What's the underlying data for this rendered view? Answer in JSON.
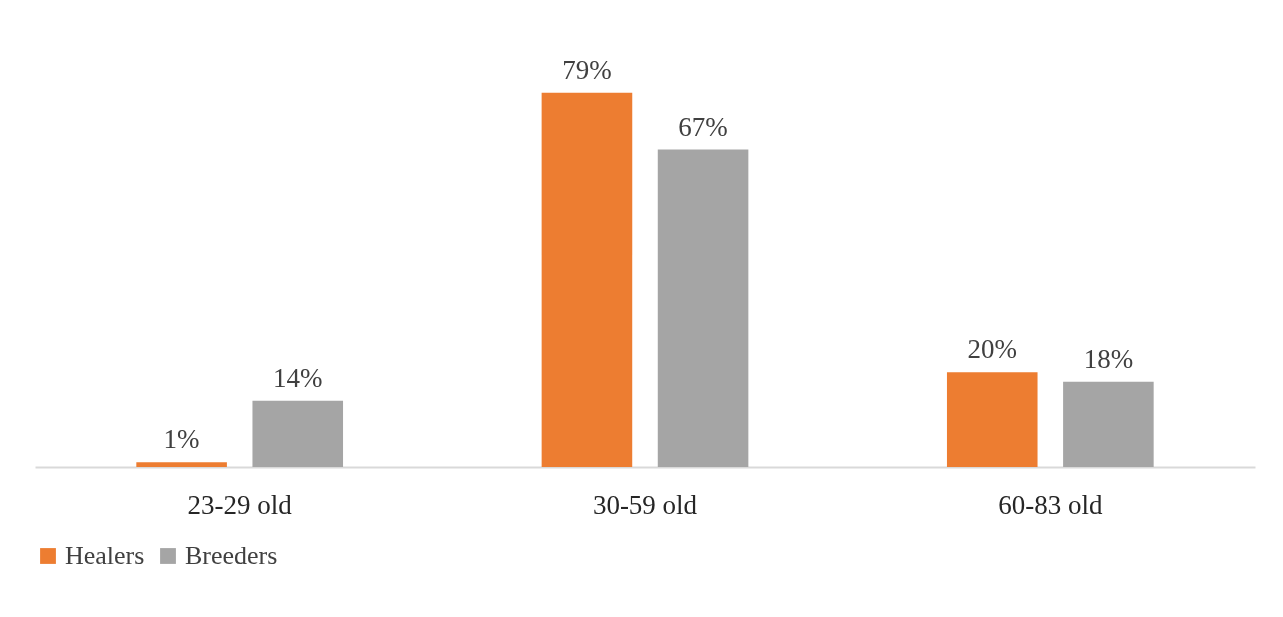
{
  "chart_data": {
    "type": "bar",
    "categories": [
      "23-29 old",
      "30-59 old",
      "60-83 old"
    ],
    "series": [
      {
        "name": "Healers",
        "color": "#ed7d31",
        "values": [
          1,
          79,
          20
        ],
        "value_labels": [
          "1%",
          "79%",
          "20%"
        ]
      },
      {
        "name": "Breeders",
        "color": "#a5a5a5",
        "values": [
          14,
          67,
          18
        ],
        "value_labels": [
          "14%",
          "67%",
          "18%"
        ]
      }
    ],
    "legend": "bottom",
    "grid": false
  }
}
